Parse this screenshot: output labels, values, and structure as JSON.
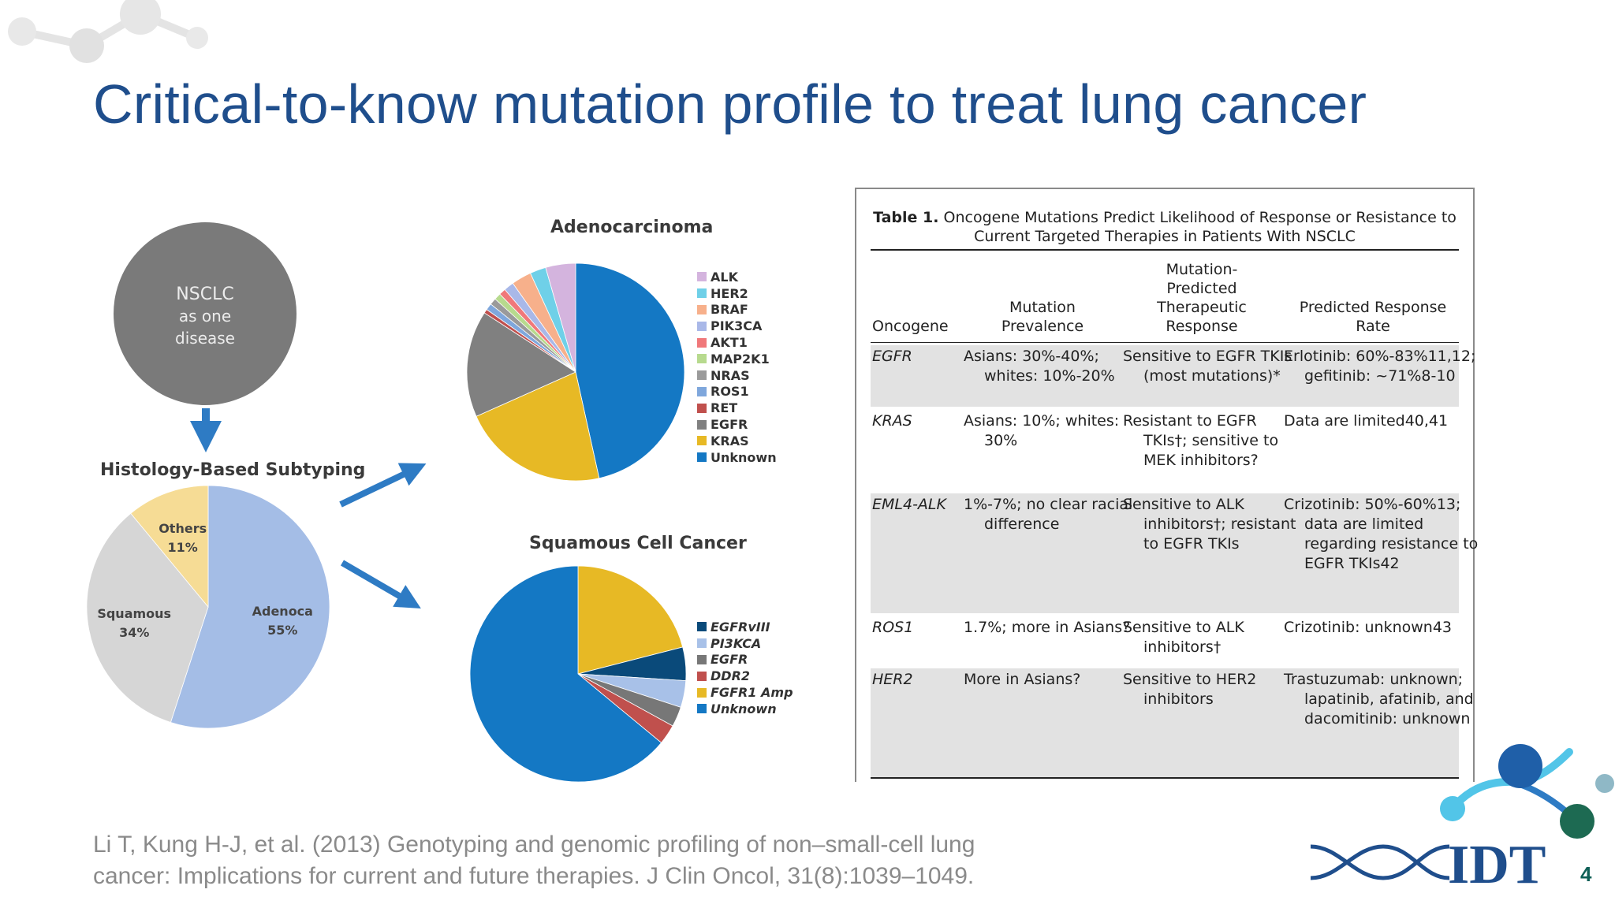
{
  "slide": {
    "title": "Critical-to-know mutation profile to treat lung cancer",
    "citation_line1": "Li T, Kung H-J, et al. (2013) Genotyping and genomic profiling of non–small-cell lung",
    "citation_line2": "cancer: Implications for current and future therapies. J Clin Oncol, 31(8):1039–1049.",
    "page_number": "4",
    "logo_text": "IDT",
    "accent_color": "#1f4e8c"
  },
  "figure": {
    "nsclc_circle": [
      "NSCLC",
      "as one",
      "disease"
    ],
    "histology_label": "Histology-Based Subtyping",
    "adeno_title": "Adenocarcinoma",
    "squamous_title": "Squamous Cell Cancer"
  },
  "chart_data": [
    {
      "type": "pie",
      "title": "Histology-Based Subtyping",
      "slices": [
        {
          "label": "Adenoca",
          "value": 55,
          "display": "55%",
          "color": "#a4bde6"
        },
        {
          "label": "Squamous",
          "value": 34,
          "display": "34%",
          "color": "#d6d6d6"
        },
        {
          "label": "Others",
          "value": 11,
          "display": "11%",
          "color": "#f6dc95"
        }
      ]
    },
    {
      "type": "pie",
      "title": "Adenocarcinoma",
      "slices": [
        {
          "label": "Unknown",
          "value": 47,
          "color": "#1478c4"
        },
        {
          "label": "KRAS",
          "value": 22,
          "color": "#e7b925"
        },
        {
          "label": "EGFR",
          "value": 16,
          "color": "#808080"
        },
        {
          "label": "RET",
          "value": 0.6,
          "color": "#c0504d"
        },
        {
          "label": "ROS1",
          "value": 1,
          "color": "#7fa7dc"
        },
        {
          "label": "NRAS",
          "value": 1,
          "color": "#9a9a9a"
        },
        {
          "label": "MAP2K1",
          "value": 1,
          "color": "#b7da8e"
        },
        {
          "label": "AKT1",
          "value": 1,
          "color": "#f0787a"
        },
        {
          "label": "PIK3CA",
          "value": 1.5,
          "color": "#a9b8e8"
        },
        {
          "label": "BRAF",
          "value": 3,
          "color": "#f7b08b"
        },
        {
          "label": "HER2",
          "value": 2.4,
          "color": "#6fd0e8"
        },
        {
          "label": "ALK",
          "value": 4.5,
          "color": "#d4b4de"
        }
      ],
      "legend": [
        "ALK",
        "HER2",
        "BRAF",
        "PIK3CA",
        "AKT1",
        "MAP2K1",
        "NRAS",
        "ROS1",
        "RET",
        "EGFR",
        "KRAS",
        "Unknown"
      ]
    },
    {
      "type": "pie",
      "title": "Squamous Cell Cancer",
      "slices": [
        {
          "label": "FGFR1 Amp",
          "value": 21,
          "color": "#e7b925"
        },
        {
          "label": "EGFRvIII",
          "value": 5,
          "color": "#0a4a7a"
        },
        {
          "label": "PI3KCA",
          "value": 4,
          "color": "#a8c1e8"
        },
        {
          "label": "EGFR",
          "value": 3,
          "color": "#777777"
        },
        {
          "label": "DDR2",
          "value": 3,
          "color": "#c0504d"
        },
        {
          "label": "Unknown",
          "value": 64,
          "color": "#1478c4"
        }
      ],
      "legend": [
        "EGFRvIII",
        "PI3KCA",
        "EGFR",
        "DDR2",
        "FGFR1 Amp",
        "Unknown"
      ]
    }
  ],
  "table": {
    "caption_bold": "Table 1.",
    "caption_text": " Oncogene Mutations Predict Likelihood of Response or Resistance to Current Targeted Therapies in Patients With NSCLC",
    "headers": {
      "oncogene": "Oncogene",
      "prevalence": [
        "Mutation",
        "Prevalence"
      ],
      "response": [
        "Mutation-",
        "Predicted",
        "Therapeutic",
        "Response"
      ],
      "rate": [
        "Predicted Response",
        "Rate"
      ]
    },
    "rows": [
      {
        "oncogene": "EGFR",
        "prevalence": "Asians: 30%-40%; whites: 10%-20%",
        "response": "Sensitive to EGFR TKIs (most mutations)*",
        "rate": "Erlotinib: 60%-83%11,12; gefitinib: ~71%8-10"
      },
      {
        "oncogene": "KRAS",
        "prevalence": "Asians: 10%; whites: 30%",
        "response": "Resistant to EGFR TKIs†; sensitive to MEK inhibitors?",
        "rate": "Data are limited40,41"
      },
      {
        "oncogene": "EML4-ALK",
        "prevalence": "1%-7%; no clear racial difference",
        "response": "Sensitive to ALK inhibitors†; resistant to EGFR TKIs",
        "rate": "Crizotinib: 50%-60%13; data are limited regarding resistance to EGFR TKIs42"
      },
      {
        "oncogene": "ROS1",
        "prevalence": "1.7%; more in Asians?",
        "response": "Sensitive to ALK inhibitors†",
        "rate": "Crizotinib: unknown43"
      },
      {
        "oncogene": "HER2",
        "prevalence": "More in Asians?",
        "response": "Sensitive to HER2 inhibitors",
        "rate": "Trastuzumab: unknown; lapatinib, afatinib, and dacomitinib: unknown"
      }
    ]
  }
}
